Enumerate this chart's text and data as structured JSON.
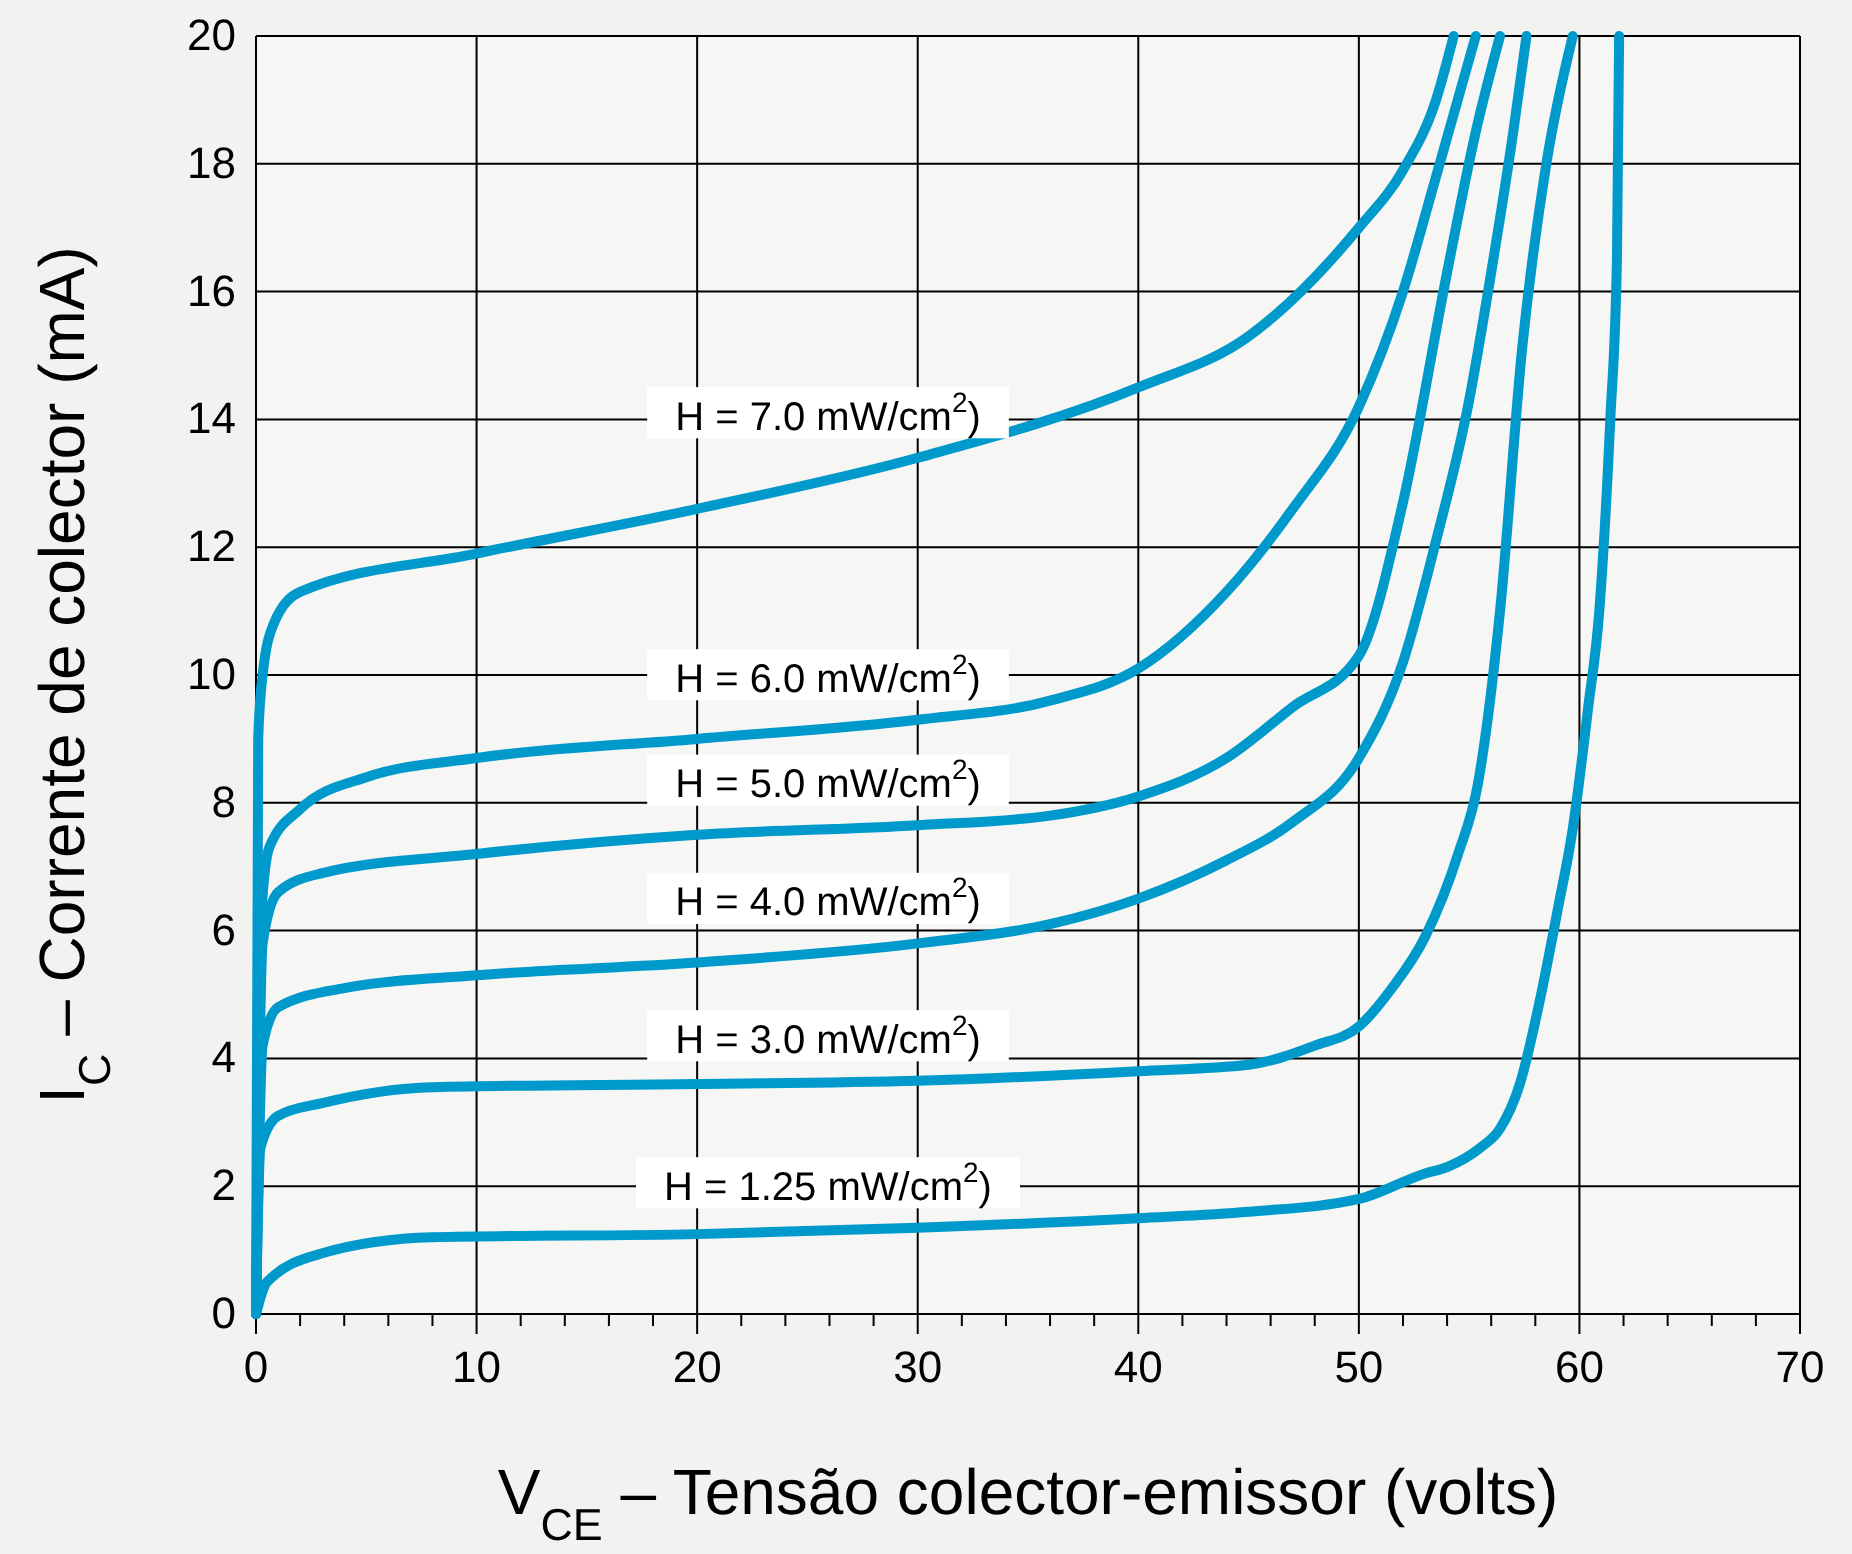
{
  "chart_data": {
    "type": "line",
    "xlabel": "V$_{CE}$ – Tensão colector-emissor  (volts)",
    "ylabel": "I$_{C}$ – Corrente de colector  (mA)",
    "xlim": [
      0,
      70
    ],
    "ylim": [
      0,
      20
    ],
    "xticks": [
      0,
      {
        "value": 2,
        "label": null
      },
      {
        "value": 4,
        "label": null
      },
      {
        "value": 6,
        "label": null
      },
      {
        "value": 8,
        "label": null
      },
      10,
      {
        "value": 12,
        "label": null
      },
      {
        "value": 14,
        "label": null
      },
      {
        "value": 16,
        "label": null
      },
      {
        "value": 18,
        "label": null
      },
      20,
      {
        "value": 22,
        "label": null
      },
      {
        "value": 24,
        "label": null
      },
      {
        "value": 26,
        "label": null
      },
      {
        "value": 28,
        "label": null
      },
      30,
      {
        "value": 32,
        "label": null
      },
      {
        "value": 34,
        "label": null
      },
      {
        "value": 36,
        "label": null
      },
      {
        "value": 38,
        "label": null
      },
      40,
      {
        "value": 42,
        "label": null
      },
      {
        "value": 44,
        "label": null
      },
      {
        "value": 46,
        "label": null
      },
      {
        "value": 48,
        "label": null
      },
      50,
      {
        "value": 52,
        "label": null
      },
      {
        "value": 54,
        "label": null
      },
      {
        "value": 56,
        "label": null
      },
      {
        "value": 58,
        "label": null
      },
      60,
      {
        "value": 62,
        "label": null
      },
      {
        "value": 64,
        "label": null
      },
      {
        "value": 66,
        "label": null
      },
      {
        "value": 68,
        "label": null
      },
      70
    ],
    "yticks": [
      0,
      2,
      4,
      6,
      8,
      10,
      12,
      14,
      16,
      18,
      20
    ],
    "grid": true,
    "marker": "none",
    "line_style": "solid",
    "series": [
      {
        "name": "H = 7.0 mW/cm$^{2}$)",
        "color": "#0099cc",
        "x": [
          0,
          0.1,
          0.3,
          0.8,
          2,
          10,
          20,
          30,
          40,
          45,
          50,
          52,
          53.5,
          54.3
        ],
        "values": [
          0,
          9,
          10,
          10.8,
          11.3,
          11.9,
          12.6,
          13.4,
          14.5,
          15.3,
          17,
          17.9,
          19,
          20
        ]
      },
      {
        "name": "H = 6.0 mW/cm$^{2}$)",
        "color": "#0099cc",
        "x": [
          0,
          0.2,
          0.6,
          2,
          5,
          10,
          20,
          30,
          36,
          40,
          44,
          47,
          50,
          52,
          53.5,
          55.3
        ],
        "values": [
          0,
          6,
          7.3,
          7.9,
          8.4,
          8.7,
          9,
          9.3,
          9.6,
          10.1,
          11.3,
          12.6,
          14.2,
          16,
          17.8,
          20
        ]
      },
      {
        "name": "H = 5.0 mW/cm$^{2}$)",
        "color": "#0099cc",
        "x": [
          0,
          0.3,
          1,
          3,
          10,
          20,
          30,
          36,
          40,
          44,
          47,
          50,
          52,
          54,
          55.3,
          56.4
        ],
        "values": [
          0,
          5.8,
          6.6,
          6.9,
          7.2,
          7.5,
          7.65,
          7.8,
          8.1,
          8.7,
          9.5,
          10.3,
          12.7,
          16.3,
          18.5,
          20
        ]
      },
      {
        "name": "H = 4.0 mW/cm$^{2}$)",
        "color": "#0099cc",
        "x": [
          0,
          0.3,
          1,
          4,
          10,
          20,
          30,
          36,
          40,
          44,
          47,
          50,
          52,
          53.5,
          55,
          56,
          57,
          57.6
        ],
        "values": [
          0,
          4.2,
          4.8,
          5.1,
          5.3,
          5.5,
          5.8,
          6.1,
          6.5,
          7.1,
          7.7,
          8.7,
          10.2,
          12.1,
          14.3,
          16.3,
          18.5,
          20
        ]
      },
      {
        "name": "H = 3.0 mW/cm$^{2}$)",
        "color": "#0099cc",
        "x": [
          0,
          0.2,
          1,
          3,
          8,
          20,
          30,
          40,
          45,
          48,
          50,
          51.5,
          53,
          54.5,
          55.4,
          56.4,
          57.4,
          58.5,
          59.7
        ],
        "values": [
          0,
          2.6,
          3.1,
          3.3,
          3.55,
          3.6,
          3.65,
          3.8,
          3.9,
          4.2,
          4.5,
          5.1,
          5.9,
          7.2,
          8.3,
          11,
          15.1,
          18,
          20
        ]
      },
      {
        "name": "H = 1.25 mW/cm$^{2}$)",
        "color": "#0099cc",
        "x": [
          0,
          0.5,
          3,
          8,
          20,
          30,
          40,
          45,
          50,
          53,
          54,
          55.5,
          56.4,
          57.3,
          58.2,
          59,
          59.7,
          60.4,
          60.9,
          61.4,
          61.7,
          61.8
        ],
        "values": [
          0,
          0.5,
          0.95,
          1.2,
          1.25,
          1.35,
          1.5,
          1.6,
          1.8,
          2.2,
          2.3,
          2.6,
          2.9,
          3.6,
          4.9,
          6.3,
          7.6,
          9.5,
          11,
          14,
          16.5,
          20
        ]
      }
    ]
  }
}
